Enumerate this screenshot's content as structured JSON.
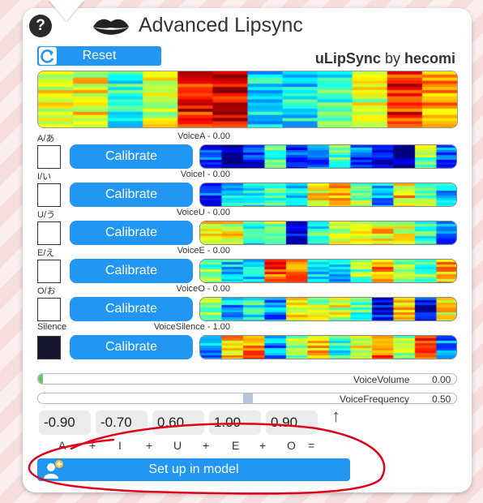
{
  "header": {
    "title": "Advanced Lipsync",
    "help_icon": "question-icon",
    "mouth_icon": "lips-icon",
    "help_text": "?"
  },
  "toolbar": {
    "reset_label": "Reset",
    "reset_icon": "refresh-icon",
    "brand_name": "uLipSync",
    "brand_by": "by",
    "brand_author": "hecomi"
  },
  "phonemes": [
    {
      "label": "A/あ",
      "voice": "VoiceA - 0.00",
      "button": "Calibrate",
      "filled": false
    },
    {
      "label": "I/い",
      "voice": "VoiceI - 0.00",
      "button": "Calibrate",
      "filled": false
    },
    {
      "label": "U/う",
      "voice": "VoiceU - 0.00",
      "button": "Calibrate",
      "filled": false
    },
    {
      "label": "E/え",
      "voice": "VoiceE - 0.00",
      "button": "Calibrate",
      "filled": false
    },
    {
      "label": "O/お",
      "voice": "VoiceO - 0.00",
      "button": "Calibrate",
      "filled": false
    },
    {
      "label": "Silence",
      "voice": "VoiceSilence - 1.00",
      "button": "Calibrate",
      "filled": true
    }
  ],
  "sliders": {
    "volume_label": "VoiceVolume",
    "volume_value": "0.00",
    "volume_level": 0.0,
    "frequency_label": "VoiceFrequency",
    "frequency_value": "0.50",
    "frequency_level": 0.5
  },
  "weights": {
    "a": "-0.90",
    "i": "-0.70",
    "u": "0.60",
    "e": "1.00",
    "o": "0.90",
    "arrow": "↑"
  },
  "formula": [
    "A",
    "+",
    "I",
    "+",
    "U",
    "+",
    "E",
    "+",
    "O",
    "="
  ],
  "setup": {
    "label": "Set up in model",
    "icon": "add-user-icon"
  },
  "colors": {
    "accent": "#2196f3",
    "annotation": "#e0001b",
    "silence_box": "#161630"
  }
}
